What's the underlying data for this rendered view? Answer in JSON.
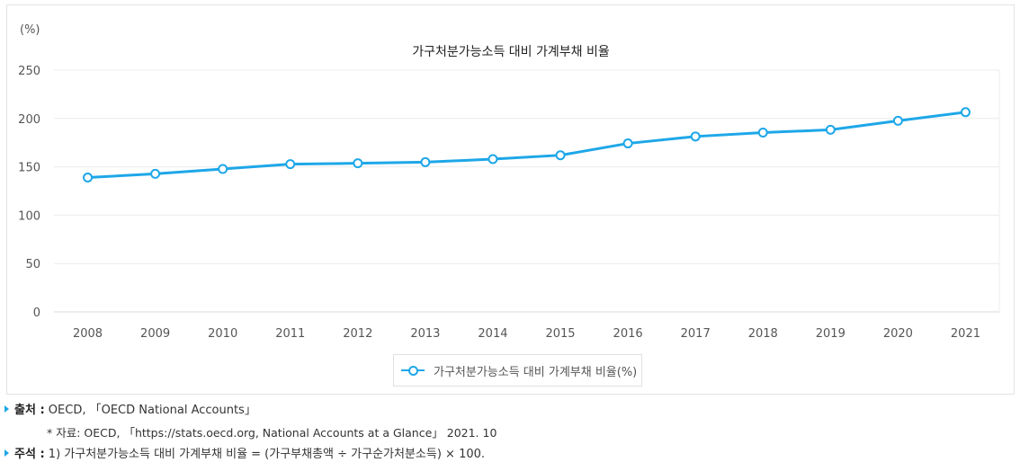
{
  "chart_data": {
    "type": "line",
    "title": "가구처분가능소득 대비 가계부채 비율",
    "ylabel": "(%)",
    "xlabel": "",
    "categories": [
      "2008",
      "2009",
      "2010",
      "2011",
      "2012",
      "2013",
      "2014",
      "2015",
      "2016",
      "2017",
      "2018",
      "2019",
      "2020",
      "2021"
    ],
    "series": [
      {
        "name": "가구처분가능소득 대비 가계부채 비율(%)",
        "values": [
          138.9,
          142.8,
          147.8,
          152.8,
          153.7,
          154.8,
          158.0,
          162.0,
          174.2,
          181.4,
          185.4,
          188.3,
          197.6,
          206.5
        ]
      }
    ],
    "ylim": [
      0,
      250
    ],
    "yticks": [
      0,
      50,
      100,
      150,
      200,
      250
    ],
    "grid": true,
    "legend_position": "bottom",
    "colors": {
      "line": "#1ea7e8"
    }
  },
  "notes": {
    "source_label": "출처 :",
    "source_text": "OECD, 「OECD National Accounts」",
    "data_text": "* 자료: OECD, 「https://stats.oecd.org, National Accounts at a Glance」 2021. 10",
    "remark_label": "주석 :",
    "remark_text": "1) 가구처분가능소득 대비 가계부채 비율 = (가구부채총액 ÷ 가구순가처분소득) × 100."
  }
}
